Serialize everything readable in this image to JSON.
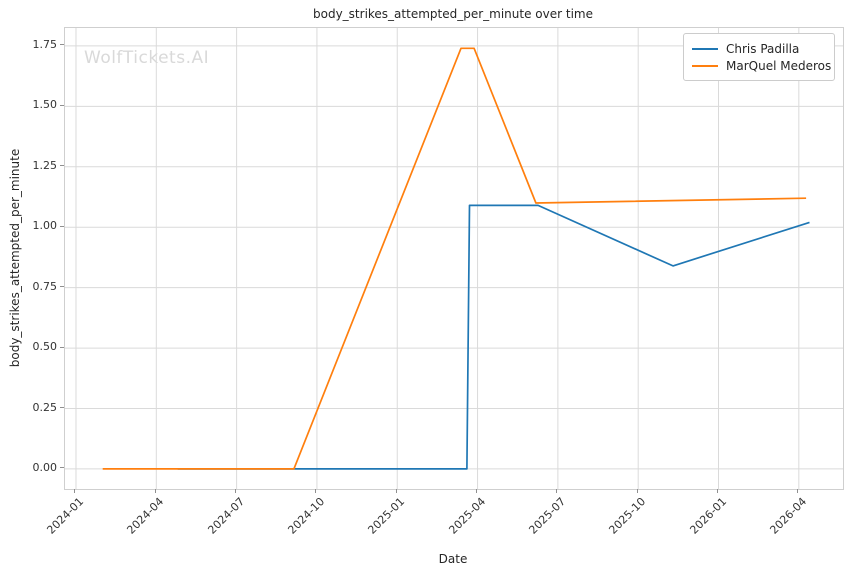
{
  "figure": {
    "background": "#ffffff",
    "grid_color": "#dadada",
    "spine_color": "#cfcfcf",
    "tick_mark_color": "#8f8f8f",
    "text_color": "#262626",
    "watermark_color": "#d9d9d9"
  },
  "chart_data": {
    "type": "line",
    "title": "body_strikes_attempted_per_minute over time",
    "xlabel": "Date",
    "ylabel": "body_strikes_attempted_per_minute",
    "watermark": "WolfTickets.AI",
    "grid": true,
    "legend_position": "upper right",
    "xlim_months": [
      -0.41,
      28.65
    ],
    "ylim": [
      -0.083,
      1.824
    ],
    "x_ticks": [
      {
        "label": "2024-01",
        "t": 0
      },
      {
        "label": "2024-04",
        "t": 3
      },
      {
        "label": "2024-07",
        "t": 6
      },
      {
        "label": "2024-10",
        "t": 9
      },
      {
        "label": "2025-01",
        "t": 12
      },
      {
        "label": "2025-04",
        "t": 15
      },
      {
        "label": "2025-07",
        "t": 18
      },
      {
        "label": "2025-10",
        "t": 21
      },
      {
        "label": "2026-01",
        "t": 24
      },
      {
        "label": "2026-04",
        "t": 27
      }
    ],
    "y_ticks": [
      {
        "label": "0.00",
        "v": 0.0
      },
      {
        "label": "0.25",
        "v": 0.25
      },
      {
        "label": "0.50",
        "v": 0.5
      },
      {
        "label": "0.75",
        "v": 0.75
      },
      {
        "label": "1.00",
        "v": 1.0
      },
      {
        "label": "1.25",
        "v": 1.25
      },
      {
        "label": "1.50",
        "v": 1.5
      },
      {
        "label": "1.75",
        "v": 1.75
      }
    ],
    "series": [
      {
        "name": "Chris Padilla",
        "color": "#1f77b4",
        "points": [
          {
            "date": "2024-04-21",
            "t": 3.8,
            "y": 0.0
          },
          {
            "date": "2025-03-18",
            "t": 14.6,
            "y": 0.0
          },
          {
            "date": "2025-03-21",
            "t": 14.7,
            "y": 1.09
          },
          {
            "date": "2025-06-08",
            "t": 17.26,
            "y": 1.09
          },
          {
            "date": "2025-11-09",
            "t": 22.3,
            "y": 0.84
          },
          {
            "date": "2026-04-12",
            "t": 27.4,
            "y": 1.02
          }
        ]
      },
      {
        "name": "MarQuel Mederos",
        "color": "#ff7f0e",
        "points": [
          {
            "date": "2024-02-01",
            "t": 1.0,
            "y": 0.0
          },
          {
            "date": "2024-09-04",
            "t": 8.14,
            "y": 0.0
          },
          {
            "date": "2025-03-11",
            "t": 14.38,
            "y": 1.74
          },
          {
            "date": "2025-03-26",
            "t": 14.87,
            "y": 1.74
          },
          {
            "date": "2025-06-05",
            "t": 17.18,
            "y": 1.1
          },
          {
            "date": "2026-04-08",
            "t": 27.27,
            "y": 1.12
          }
        ]
      }
    ]
  }
}
